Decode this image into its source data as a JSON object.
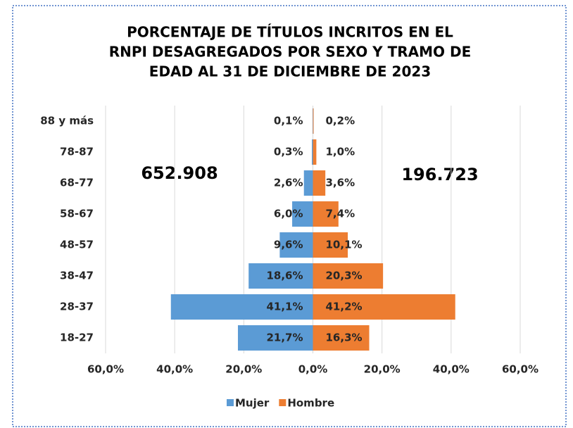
{
  "chart_data": {
    "type": "pyramid",
    "title": [
      "PORCENTAJE DE TÍTULOS INCRITOS EN EL",
      "RNPI DESAGREGADOS POR SEXO Y TRAMO DE",
      "EDAD AL 31 DE DICIEMBRE DE 2023"
    ],
    "categories": [
      "88 y más",
      "78-87",
      "68-77",
      "58-67",
      "48-57",
      "38-47",
      "28-37",
      "18-27"
    ],
    "series": [
      {
        "name": "Mujer",
        "color": "#5b9bd5",
        "values": [
          -0.1,
          -0.3,
          -2.6,
          -6.0,
          -9.6,
          -18.6,
          -41.1,
          -21.7
        ],
        "value_labels": [
          "0,1%",
          "0,3%",
          "2,6%",
          "6,0%",
          "9,6%",
          "18,6%",
          "41,1%",
          "21,7%"
        ]
      },
      {
        "name": "Hombre",
        "color": "#ed7d31",
        "values": [
          0.2,
          1.0,
          3.6,
          7.4,
          10.1,
          20.3,
          41.2,
          16.3
        ],
        "value_labels": [
          "0,2%",
          "1,0%",
          "3,6%",
          "7,4%",
          "10,1%",
          "20,3%",
          "41,2%",
          "16,3%"
        ]
      }
    ],
    "annotations": [
      "652.908",
      "196.723"
    ],
    "xlim": [
      -60,
      60
    ],
    "xticks": [
      {
        "value": -60,
        "label": "60,0%"
      },
      {
        "value": -40,
        "label": "40,0%"
      },
      {
        "value": -20,
        "label": "20,0%"
      },
      {
        "value": 0,
        "label": "0,0%"
      },
      {
        "value": 20,
        "label": "20,0%"
      },
      {
        "value": 40,
        "label": "40,0%"
      },
      {
        "value": 60,
        "label": "60,0%"
      }
    ],
    "grid": true,
    "legend": "bottom"
  }
}
